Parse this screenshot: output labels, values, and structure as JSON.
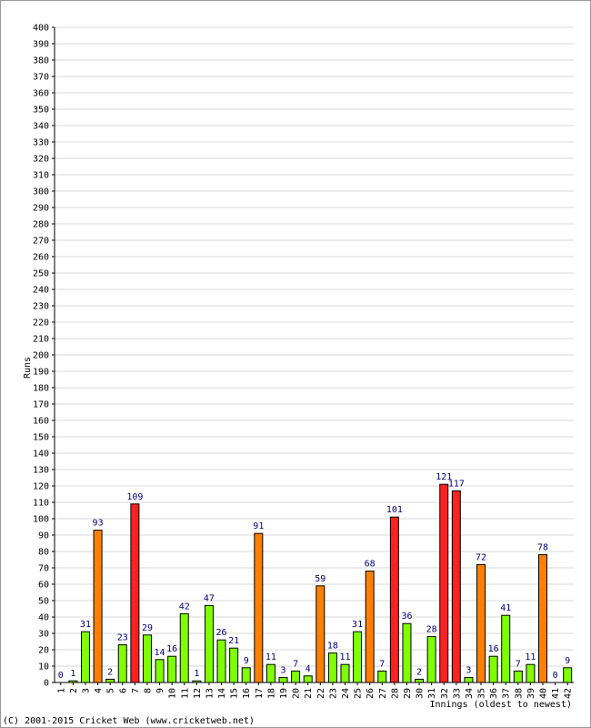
{
  "chart_data": {
    "type": "bar",
    "ylabel": "Runs",
    "xlabel": "Innings (oldest to newest)",
    "ylim": [
      0,
      400
    ],
    "y_ticks": [
      0,
      10,
      20,
      30,
      40,
      50,
      60,
      70,
      80,
      90,
      100,
      110,
      120,
      130,
      140,
      150,
      160,
      170,
      180,
      190,
      200,
      210,
      220,
      230,
      240,
      250,
      260,
      270,
      280,
      290,
      300,
      310,
      320,
      330,
      340,
      350,
      360,
      370,
      380,
      390,
      400
    ],
    "categories": [
      "1",
      "2",
      "3",
      "4",
      "5",
      "6",
      "7",
      "8",
      "9",
      "10",
      "11",
      "12",
      "13",
      "14",
      "15",
      "16",
      "17",
      "18",
      "19",
      "20",
      "21",
      "22",
      "23",
      "24",
      "25",
      "26",
      "27",
      "28",
      "29",
      "30",
      "31",
      "32",
      "33",
      "34",
      "35",
      "36",
      "37",
      "38",
      "39",
      "40",
      "41",
      "42"
    ],
    "values": [
      0,
      1,
      31,
      93,
      2,
      23,
      109,
      29,
      14,
      16,
      42,
      1,
      47,
      26,
      21,
      9,
      91,
      11,
      3,
      7,
      4,
      59,
      18,
      11,
      31,
      68,
      7,
      101,
      36,
      2,
      28,
      121,
      117,
      3,
      72,
      16,
      41,
      7,
      11,
      78,
      0,
      9
    ],
    "grid": true,
    "colors": {
      "under_50": "#80ff00",
      "fifty": "#ff8000",
      "hundred": "#ff2020",
      "label": "#000080",
      "grid": "#d8d8d8"
    }
  },
  "footer": "(C) 2001-2015 Cricket Web (www.cricketweb.net)"
}
